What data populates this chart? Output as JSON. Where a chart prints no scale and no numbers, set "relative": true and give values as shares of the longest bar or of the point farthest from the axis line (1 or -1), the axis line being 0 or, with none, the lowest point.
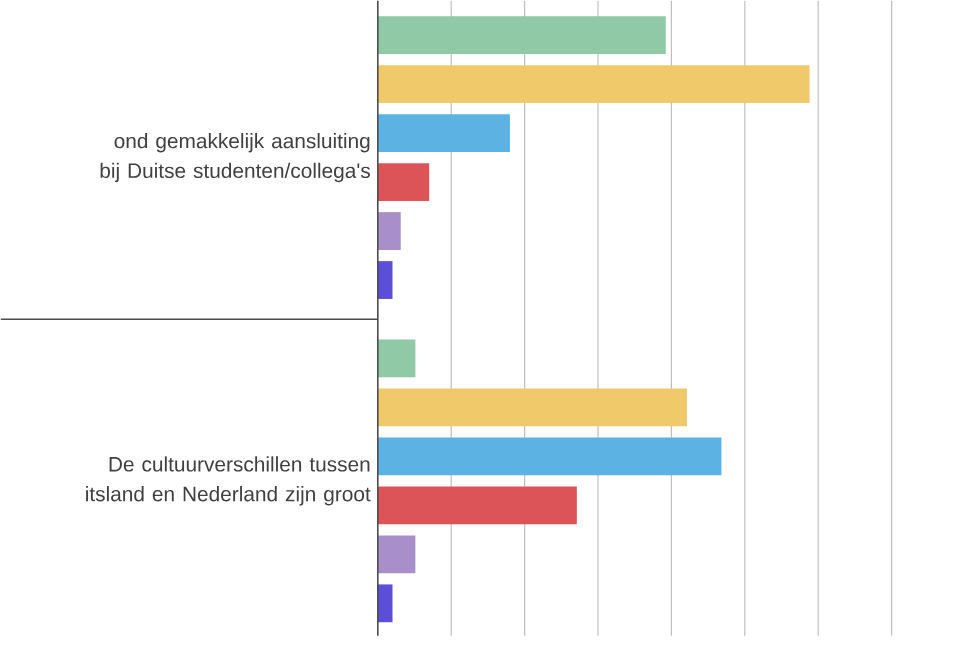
{
  "chart_data": {
    "type": "bar",
    "orientation": "horizontal",
    "relative": true,
    "grid": "x",
    "categories": [
      "ond gemakkelijk aansluiting bij Duitse studenten/collega's",
      "De cultuurverschillen tussen itsland en Nederland zijn groot"
    ],
    "series": [
      {
        "color": "#8fc9a5",
        "values": [
          0.667,
          0.087
        ]
      },
      {
        "color": "#f0c96b",
        "values": [
          1,
          0.716
        ]
      },
      {
        "color": "#5cb3e3",
        "values": [
          0.306,
          0.796
        ]
      },
      {
        "color": "#dc5457",
        "values": [
          0.119,
          0.461
        ]
      },
      {
        "color": "#a98fca",
        "values": [
          0.053,
          0.087
        ]
      },
      {
        "color": "#5a4fd6",
        "values": [
          0.034,
          0.034
        ]
      }
    ]
  }
}
